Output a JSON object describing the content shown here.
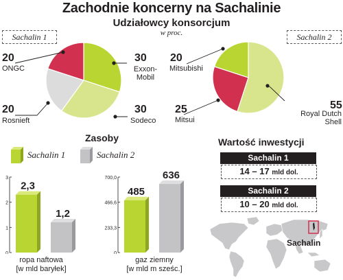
{
  "title": "Zachodnie koncerny na Sachalinie",
  "subtitle": "Udziałowcy konsorcjum",
  "unit": "w proc.",
  "sachalin1_label": "Sachalin 1",
  "sachalin2_label": "Sachalin 2",
  "colors": {
    "green": "#b9d531",
    "lightgreen": "#d9e58c",
    "red": "#d2304f",
    "gray": "#c9c9cb",
    "dark": "#231f20"
  },
  "chart_data": [
    {
      "type": "pie",
      "name": "Sachalin 1",
      "slices": [
        {
          "label": "Exxon-\nMobil",
          "value": 30,
          "color": "#b9d531"
        },
        {
          "label": "Sodeco",
          "value": 30,
          "color": "#d9e58c"
        },
        {
          "label": "Rosnieft",
          "value": 20,
          "color": "#dcdcdc"
        },
        {
          "label": "ONGC",
          "value": 20,
          "color": "#d2304f"
        }
      ]
    },
    {
      "type": "pie",
      "name": "Sachalin 2",
      "slices": [
        {
          "label": "Royal Dutch\nShell",
          "value": 55,
          "color": "#d9e58c"
        },
        {
          "label": "Mitsui",
          "value": 25,
          "color": "#d2304f"
        },
        {
          "label": "Mitsubishi",
          "value": 20,
          "color": "#b9d531"
        }
      ]
    },
    {
      "type": "bar",
      "title": "Zasoby",
      "categories": [
        "ropa naftowa\n[w mld baryłek]"
      ],
      "series": [
        {
          "name": "Sachalin 1",
          "values": [
            2.3
          ],
          "labels": [
            "2,3"
          ]
        },
        {
          "name": "Sachalin 2",
          "values": [
            1.2
          ],
          "labels": [
            "1,2"
          ]
        }
      ],
      "ylim": [
        0,
        3
      ],
      "yticks": [
        0,
        1,
        2,
        3
      ],
      "ytick_labels": [
        "0",
        "1",
        "2",
        "3"
      ]
    },
    {
      "type": "bar",
      "categories": [
        "gaz ziemny\n[w mld m sześc.]"
      ],
      "series": [
        {
          "name": "Sachalin 1",
          "values": [
            485
          ],
          "labels": [
            "485"
          ]
        },
        {
          "name": "Sachalin 2",
          "values": [
            636
          ],
          "labels": [
            "636"
          ]
        }
      ],
      "ylim": [
        0,
        700
      ],
      "yticks": [
        0,
        233.3,
        466.6,
        700
      ],
      "ytick_labels": [
        "0",
        "233,3",
        "466,6",
        "700,0"
      ]
    }
  ],
  "legend": {
    "s1": "Sachalin 1",
    "s2": "Sachalin 2"
  },
  "investment": {
    "title": "Wartość inwestycji",
    "s1_head": "Sachalin 1",
    "s1_value": "14 – 17",
    "s1_unit": "mld dol.",
    "s2_head": "Sachalin 2",
    "s2_value": "10 – 20",
    "s2_unit": "mld dol."
  },
  "map_label": "Sachalin"
}
